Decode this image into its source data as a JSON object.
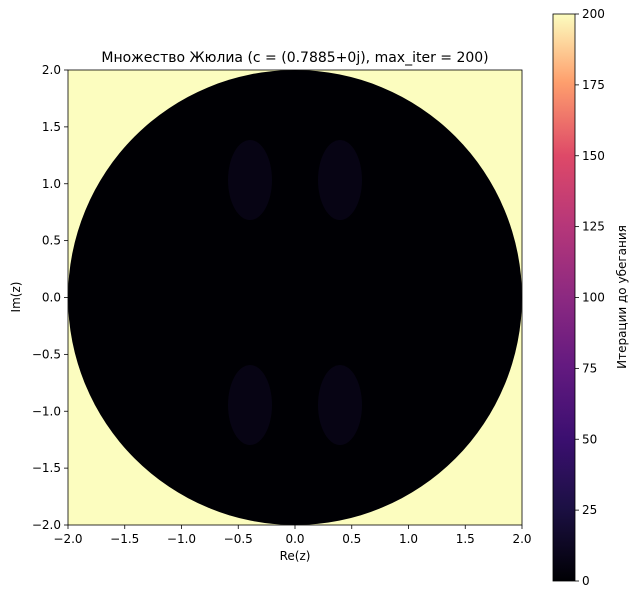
{
  "chart_data": {
    "type": "heatmap",
    "title": "Множество Жюлиа (c = (0.7885+0j), max_iter = 200)",
    "xlabel": "Re(z)",
    "ylabel": "Im(z)",
    "xlim": [
      -2.0,
      2.0
    ],
    "ylim": [
      -2.0,
      2.0
    ],
    "x_ticks": [
      "−2.0",
      "−1.5",
      "−1.0",
      "−0.5",
      "0.0",
      "0.5",
      "1.0",
      "1.5",
      "2.0"
    ],
    "y_ticks": [
      "−2.0",
      "−1.5",
      "−1.0",
      "−0.5",
      "0.0",
      "0.5",
      "1.0",
      "1.5",
      "2.0"
    ],
    "c": [
      0.7885,
      0.0
    ],
    "max_iter": 200,
    "colormap": "magma",
    "escape_radius": 2.0,
    "interior_value": 0,
    "exterior_value": 200,
    "grid": false,
    "colorbar": {
      "label": "Итерации до убегания",
      "range": [
        0,
        200
      ],
      "ticks": [
        "0",
        "25",
        "50",
        "75",
        "100",
        "125",
        "150",
        "175",
        "200"
      ]
    }
  }
}
